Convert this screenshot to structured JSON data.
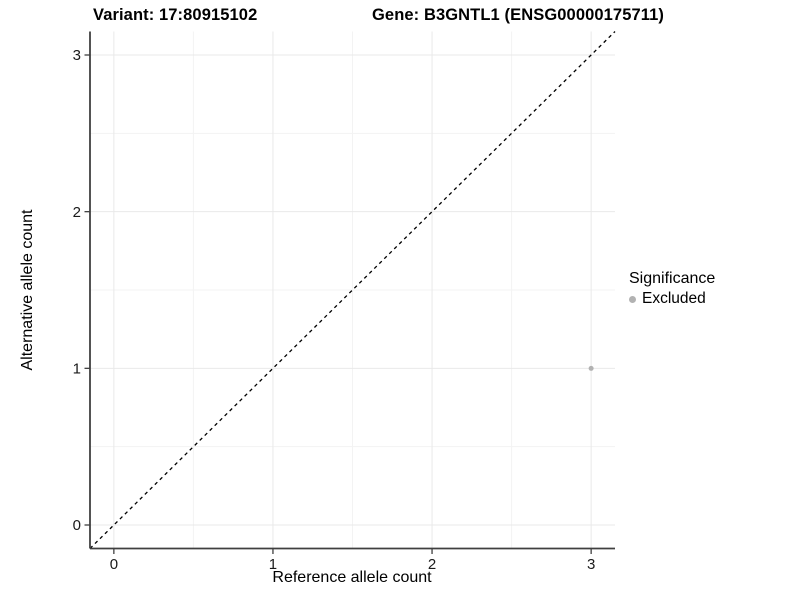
{
  "header": {
    "variant_title": "Variant: 17:80915102",
    "gene_title": "Gene: B3GNTL1 (ENSG00000175711)"
  },
  "legend": {
    "title": "Significance",
    "items": [
      {
        "label": "Excluded",
        "color": "#b2b2b2"
      }
    ]
  },
  "chart_data": {
    "type": "scatter",
    "title": "",
    "xlabel": "Reference allele count",
    "ylabel": "Alternative allele count",
    "xlim": [
      -0.15,
      3.15
    ],
    "ylim": [
      -0.15,
      3.15
    ],
    "xticks": [
      0,
      1,
      2,
      3
    ],
    "yticks": [
      0,
      1,
      2,
      3
    ],
    "xminor": [
      0.5,
      1.5,
      2.5
    ],
    "yminor": [
      0.5,
      1.5,
      2.5
    ],
    "grid": true,
    "legend_position": "right",
    "reference_line": {
      "style": "dashed",
      "from": [
        -0.15,
        -0.15
      ],
      "to": [
        3.15,
        3.15
      ],
      "color": "#000000"
    },
    "series": [
      {
        "name": "Excluded",
        "color": "#b2b2b2",
        "points": [
          {
            "x": 3,
            "y": 1
          }
        ]
      }
    ]
  }
}
